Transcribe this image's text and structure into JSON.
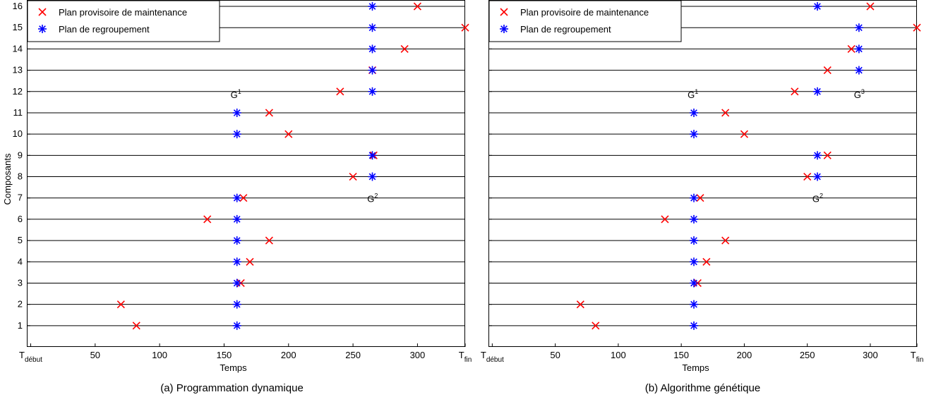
{
  "chart_data": [
    {
      "type": "scatter",
      "caption": "(a) Programmation dynamique",
      "xlabel": "Temps",
      "ylabel": "Composants",
      "xlim": [
        -3,
        337
      ],
      "ylim": [
        0,
        16
      ],
      "xticks": [
        {
          "value": 0,
          "main": "T",
          "sub": "début"
        },
        {
          "value": 50,
          "main": "50"
        },
        {
          "value": 100,
          "main": "100"
        },
        {
          "value": 150,
          "main": "150"
        },
        {
          "value": 200,
          "main": "200"
        },
        {
          "value": 250,
          "main": "250"
        },
        {
          "value": 300,
          "main": "300"
        },
        {
          "value": 337,
          "main": "T",
          "sub": "fin"
        }
      ],
      "yticks": [
        1,
        2,
        3,
        4,
        5,
        6,
        7,
        8,
        9,
        10,
        11,
        12,
        13,
        14,
        15,
        16
      ],
      "grid": "horizontal",
      "legend": {
        "position": "top-left",
        "entries": [
          "Plan provisoire de maintenance",
          "Plan de regroupement"
        ]
      },
      "series": [
        {
          "name": "Plan provisoire de maintenance",
          "marker": "x",
          "color": "#ff0000",
          "points": [
            [
              82,
              1
            ],
            [
              70,
              2
            ],
            [
              163,
              3
            ],
            [
              170,
              4
            ],
            [
              185,
              5
            ],
            [
              137,
              6
            ],
            [
              165,
              7
            ],
            [
              250,
              8
            ],
            [
              266,
              9
            ],
            [
              200,
              10
            ],
            [
              185,
              11
            ],
            [
              240,
              12
            ],
            [
              265,
              13
            ],
            [
              290,
              14
            ],
            [
              337,
              15
            ],
            [
              300,
              16
            ]
          ]
        },
        {
          "name": "Plan de regroupement",
          "marker": "*",
          "color": "#0000ff",
          "points": [
            [
              160,
              1
            ],
            [
              160,
              2
            ],
            [
              160,
              3
            ],
            [
              160,
              4
            ],
            [
              160,
              5
            ],
            [
              160,
              6
            ],
            [
              160,
              7
            ],
            [
              265,
              8
            ],
            [
              265,
              9
            ],
            [
              160,
              10
            ],
            [
              160,
              11
            ],
            [
              265,
              12
            ],
            [
              265,
              13
            ],
            [
              265,
              14
            ],
            [
              265,
              15
            ],
            [
              265,
              16
            ]
          ]
        }
      ],
      "annotations": [
        {
          "text": "G",
          "sup": "1",
          "x": 155,
          "y": 11.7
        },
        {
          "text": "G",
          "sup": "2",
          "x": 261,
          "y": 6.8
        }
      ]
    },
    {
      "type": "scatter",
      "caption": "(b) Algorithme génétique",
      "xlabel": "Temps",
      "ylabel": "",
      "xlim": [
        -3,
        337
      ],
      "ylim": [
        0,
        16
      ],
      "xticks": [
        {
          "value": 0,
          "main": "T",
          "sub": "début"
        },
        {
          "value": 50,
          "main": "50"
        },
        {
          "value": 100,
          "main": "100"
        },
        {
          "value": 150,
          "main": "150"
        },
        {
          "value": 200,
          "main": "200"
        },
        {
          "value": 250,
          "main": "250"
        },
        {
          "value": 300,
          "main": "300"
        },
        {
          "value": 337,
          "main": "T",
          "sub": "fin"
        }
      ],
      "yticks": [],
      "grid": "horizontal",
      "legend": {
        "position": "top-left",
        "entries": [
          "Plan provisoire de maintenance",
          "Plan de regroupement"
        ]
      },
      "series": [
        {
          "name": "Plan provisoire de maintenance",
          "marker": "x",
          "color": "#ff0000",
          "points": [
            [
              82,
              1
            ],
            [
              70,
              2
            ],
            [
              163,
              3
            ],
            [
              170,
              4
            ],
            [
              185,
              5
            ],
            [
              137,
              6
            ],
            [
              165,
              7
            ],
            [
              250,
              8
            ],
            [
              266,
              9
            ],
            [
              200,
              10
            ],
            [
              185,
              11
            ],
            [
              240,
              12
            ],
            [
              266,
              13
            ],
            [
              285,
              14
            ],
            [
              337,
              15
            ],
            [
              300,
              16
            ]
          ]
        },
        {
          "name": "Plan de regroupement",
          "marker": "*",
          "color": "#0000ff",
          "points": [
            [
              160,
              1
            ],
            [
              160,
              2
            ],
            [
              160,
              3
            ],
            [
              160,
              4
            ],
            [
              160,
              5
            ],
            [
              160,
              6
            ],
            [
              160,
              7
            ],
            [
              258,
              8
            ],
            [
              258,
              9
            ],
            [
              160,
              10
            ],
            [
              160,
              11
            ],
            [
              258,
              12
            ],
            [
              291,
              13
            ],
            [
              291,
              14
            ],
            [
              291,
              15
            ],
            [
              258,
              16
            ]
          ]
        }
      ],
      "annotations": [
        {
          "text": "G",
          "sup": "1",
          "x": 155,
          "y": 11.7
        },
        {
          "text": "G",
          "sup": "2",
          "x": 254,
          "y": 6.8
        },
        {
          "text": "G",
          "sup": "3",
          "x": 287,
          "y": 11.7
        }
      ]
    }
  ]
}
